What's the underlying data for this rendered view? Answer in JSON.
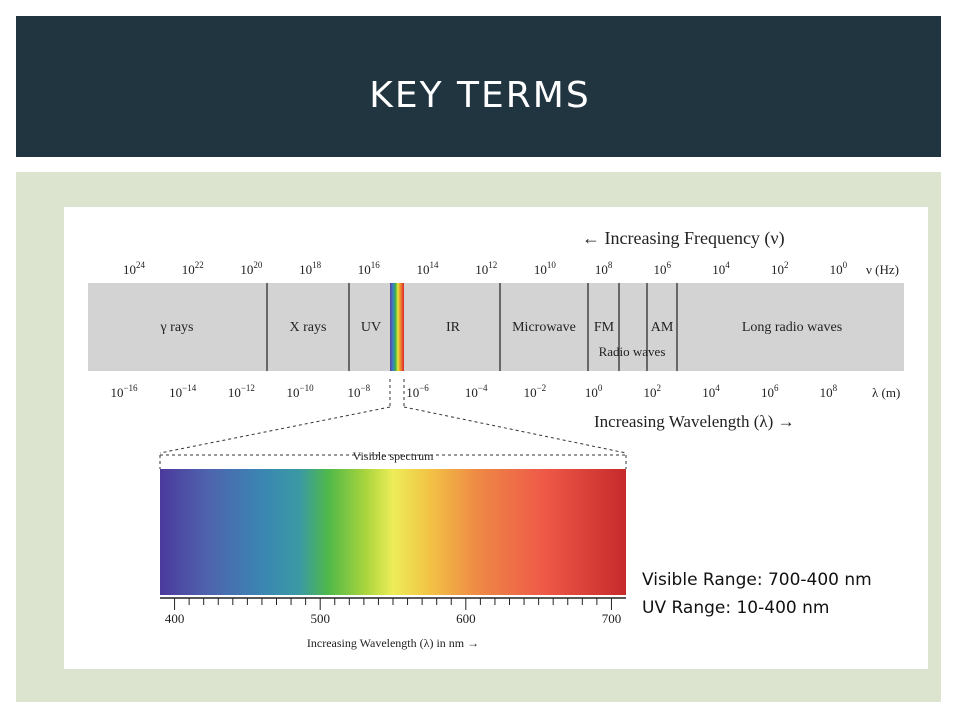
{
  "slide": {
    "title": "KEY TERMS",
    "visible_range_text": "Visible Range: 700-400 nm",
    "uv_range_text": "UV Range: 10-400 nm"
  },
  "spectrum": {
    "frequency_arrow_label": "← Increasing Frequency (ν)",
    "frequency_unit": "ν (Hz)",
    "frequency_ticks": [
      {
        "base": "10",
        "exp": "24"
      },
      {
        "base": "10",
        "exp": "22"
      },
      {
        "base": "10",
        "exp": "20"
      },
      {
        "base": "10",
        "exp": "18"
      },
      {
        "base": "10",
        "exp": "16"
      },
      {
        "base": "10",
        "exp": "14"
      },
      {
        "base": "10",
        "exp": "12"
      },
      {
        "base": "10",
        "exp": "10"
      },
      {
        "base": "10",
        "exp": "8"
      },
      {
        "base": "10",
        "exp": "6"
      },
      {
        "base": "10",
        "exp": "4"
      },
      {
        "base": "10",
        "exp": "2"
      },
      {
        "base": "10",
        "exp": "0"
      }
    ],
    "regions": [
      "γ rays",
      "X rays",
      "UV",
      "IR",
      "Microwave",
      "FM",
      "AM",
      "Long radio waves"
    ],
    "radio_waves_label": "Radio waves",
    "wavelength_ticks": [
      {
        "base": "10",
        "exp": "−16"
      },
      {
        "base": "10",
        "exp": "−14"
      },
      {
        "base": "10",
        "exp": "−12"
      },
      {
        "base": "10",
        "exp": "−10"
      },
      {
        "base": "10",
        "exp": "−8"
      },
      {
        "base": "10",
        "exp": "−6"
      },
      {
        "base": "10",
        "exp": "−4"
      },
      {
        "base": "10",
        "exp": "−2"
      },
      {
        "base": "10",
        "exp": "0"
      },
      {
        "base": "10",
        "exp": "2"
      },
      {
        "base": "10",
        "exp": "4"
      },
      {
        "base": "10",
        "exp": "6"
      },
      {
        "base": "10",
        "exp": "8"
      }
    ],
    "wavelength_unit": "λ (m)",
    "wavelength_arrow_label": "Increasing Wavelength (λ) →",
    "visible_title": "Visible spectrum",
    "visible_ticks": [
      "400",
      "500",
      "600",
      "700"
    ],
    "visible_axis_label": "Increasing Wavelength (λ) in nm →"
  }
}
